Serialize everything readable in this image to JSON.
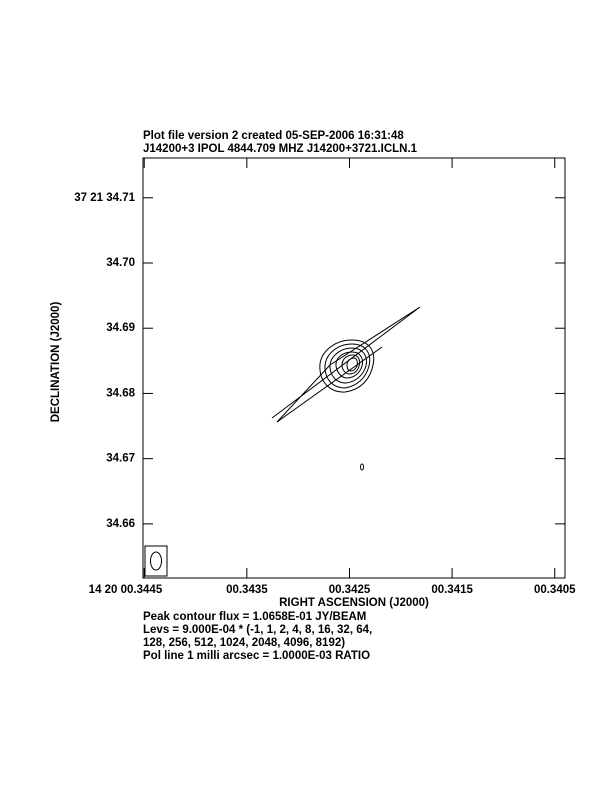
{
  "chart_data": {
    "type": "contour",
    "title_lines": [
      "Plot file version 2  created 05-SEP-2006 16:31:48",
      "J14200+3  IPOL  4844.709 MHZ  J14200+3721.ICLN.1"
    ],
    "x_label": "RIGHT ASCENSION (J2000)",
    "y_label": "DECLINATION (J2000)",
    "xlim": [
      0.344512,
      0.3404
    ],
    "xticks": [
      {
        "value": 0.3445,
        "label": "14 20 00.3445"
      },
      {
        "value": 0.3435,
        "label": "00.3435"
      },
      {
        "value": 0.3425,
        "label": "00.3425"
      },
      {
        "value": 0.3415,
        "label": "00.3415"
      },
      {
        "value": 0.3405,
        "label": "00.3405"
      }
    ],
    "ylim": [
      34.6517,
      34.7161
    ],
    "yticks": [
      {
        "value": 34.71,
        "label": "37 21 34.71"
      },
      {
        "value": 34.7,
        "label": "34.70"
      },
      34.69,
      34.68,
      34.67,
      34.66
    ],
    "notes": [
      "Peak contour flux =  1.0658E-01 JY/BEAM",
      "Levs = 9.000E-04 * (-1, 1, 2, 4, 8, 16, 32, 64,",
      "128, 256, 512, 1024, 2048, 4096, 8192)",
      "Pol line 1 milli arcsec =  1.0000E-03 RATIO"
    ]
  }
}
